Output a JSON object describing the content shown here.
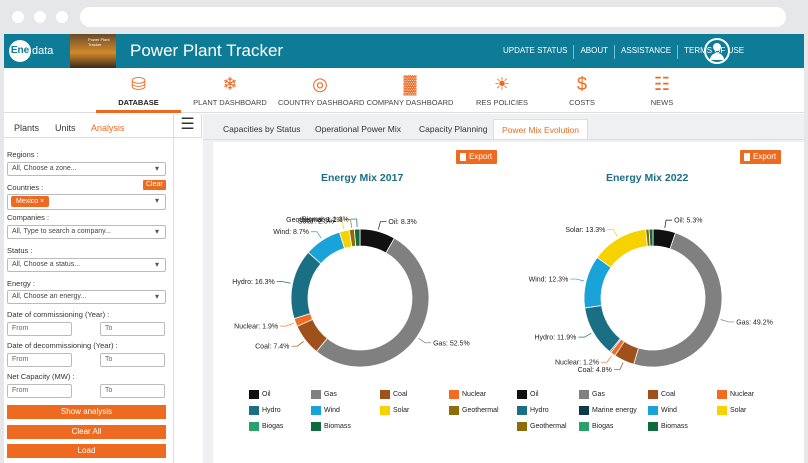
{
  "app": {
    "logo_text": "data",
    "logo_badge": "Ene",
    "thumb_text": "Power Plant Tracker",
    "title": "Power Plant Tracker",
    "top_links": [
      "UPDATE STATUS",
      "ABOUT",
      "ASSISTANCE",
      "TERMS OF USE"
    ]
  },
  "nav": [
    {
      "label": "DATABASE",
      "icon": "database-icon",
      "glyph": "⛁",
      "active": true
    },
    {
      "label": "PLANT DASHBOARD",
      "icon": "wind-turbine-icon",
      "glyph": "❄",
      "active": false
    },
    {
      "label": "COUNTRY DASHBOARD",
      "icon": "globe-icon",
      "glyph": "◎",
      "active": false
    },
    {
      "label": "COMPANY DASHBOARD",
      "icon": "company-icon",
      "glyph": "▓",
      "active": false
    },
    {
      "label": "RES POLICIES",
      "icon": "solar-icon",
      "glyph": "☀",
      "active": false
    },
    {
      "label": "COSTS",
      "icon": "dollar-icon",
      "glyph": "$",
      "active": false
    },
    {
      "label": "NEWS",
      "icon": "news-icon",
      "glyph": "☷",
      "active": false
    }
  ],
  "sidebar": {
    "tabs": [
      "Plants",
      "Units",
      "Analysis"
    ],
    "active_tab": "Analysis",
    "regions_label": "Regions :",
    "regions_value": "All, Choose a zone...",
    "countries_label": "Countries :",
    "clear_label": "Clear",
    "country_chip": "Mexico",
    "chip_close": "×",
    "companies_label": "Companies :",
    "companies_placeholder": "All, Type to search a company...",
    "status_label": "Status :",
    "status_value": "All, Choose a status...",
    "energy_label": "Energy :",
    "energy_value": "All, Choose an energy...",
    "commissioning_label": "Date of commissioning (Year) :",
    "decommissioning_label": "Date of decommissioning (Year) :",
    "capacity_label": "Net Capacity (MW) :",
    "from": "From",
    "to": "To",
    "show_analysis": "Show analysis",
    "clear_all": "Clear All",
    "load": "Load"
  },
  "main": {
    "tabs": [
      "Capacities by Status",
      "Operational Power Mix",
      "Capacity Planning",
      "Power Mix Evolution"
    ],
    "active_tab": "Power Mix Evolution",
    "export_label": "Export"
  },
  "chart_data": [
    {
      "type": "pie",
      "title": "Energy Mix 2017",
      "slices": [
        {
          "name": "Oil",
          "value": 8.3,
          "color": "#111111",
          "label": "Oil: 8.3%"
        },
        {
          "name": "Gas",
          "value": 52.5,
          "color": "#808080",
          "label": "Gas: 52.5%"
        },
        {
          "name": "Coal",
          "value": 7.4,
          "color": "#a0501a",
          "label": "Coal: 7.4%"
        },
        {
          "name": "Nuclear",
          "value": 1.9,
          "color": "#f26b22",
          "label": "Nuclear: 1.9%"
        },
        {
          "name": "Hydro",
          "value": 16.3,
          "color": "#1a6f84",
          "label": "Hydro: 16.3%"
        },
        {
          "name": "Wind",
          "value": 8.7,
          "color": "#1aa3d9",
          "label": "Wind: 8.7%"
        },
        {
          "name": "Solar",
          "value": 2.3,
          "color": "#f6d200",
          "label": "Solar: 2.3%"
        },
        {
          "name": "Geothermal",
          "value": 1.2,
          "color": "#8c6d0a",
          "label": "Geothermal: 1.2%"
        },
        {
          "name": "Biomass",
          "value": 1.3,
          "color": "#0f6b3b",
          "label": "Biomass: 1.3%"
        }
      ],
      "legend": [
        {
          "name": "Oil",
          "color": "#111111"
        },
        {
          "name": "Gas",
          "color": "#808080"
        },
        {
          "name": "Coal",
          "color": "#a0501a"
        },
        {
          "name": "Nuclear",
          "color": "#f26b22"
        },
        {
          "name": "Hydro",
          "color": "#1a6f84"
        },
        {
          "name": "Wind",
          "color": "#1aa3d9"
        },
        {
          "name": "Solar",
          "color": "#f6d200"
        },
        {
          "name": "Geothermal",
          "color": "#8c6d0a"
        },
        {
          "name": "Biogas",
          "color": "#2aa06a"
        },
        {
          "name": "Biomass",
          "color": "#0f6b3b"
        }
      ]
    },
    {
      "type": "pie",
      "title": "Energy Mix 2022",
      "slices": [
        {
          "name": "Oil",
          "value": 5.3,
          "color": "#111111",
          "label": "Oil: 5.3%"
        },
        {
          "name": "Gas",
          "value": 49.2,
          "color": "#808080",
          "label": "Gas: 49.2%"
        },
        {
          "name": "Coal",
          "value": 4.8,
          "color": "#a0501a",
          "label": "Coal: 4.8%"
        },
        {
          "name": "Nuclear",
          "value": 1.2,
          "color": "#f26b22",
          "label": "Nuclear: 1.2%"
        },
        {
          "name": "Marine energy",
          "value": 0.3,
          "color": "#0c3a4a",
          "label": ""
        },
        {
          "name": "Hydro",
          "value": 11.9,
          "color": "#1a6f84",
          "label": "Hydro: 11.9%"
        },
        {
          "name": "Wind",
          "value": 12.3,
          "color": "#1aa3d9",
          "label": "Wind: 12.3%"
        },
        {
          "name": "Solar",
          "value": 13.3,
          "color": "#f6d200",
          "label": "Solar: 13.3%"
        },
        {
          "name": "Geothermal",
          "value": 0.8,
          "color": "#8c6d0a",
          "label": ""
        },
        {
          "name": "Biomass",
          "value": 0.9,
          "color": "#0f6b3b",
          "label": ""
        }
      ],
      "legend": [
        {
          "name": "Oil",
          "color": "#111111"
        },
        {
          "name": "Gas",
          "color": "#808080"
        },
        {
          "name": "Coal",
          "color": "#a0501a"
        },
        {
          "name": "Nuclear",
          "color": "#f26b22"
        },
        {
          "name": "Hydro",
          "color": "#1a6f84"
        },
        {
          "name": "Marine energy",
          "color": "#0c3a4a"
        },
        {
          "name": "Wind",
          "color": "#1aa3d9"
        },
        {
          "name": "Solar",
          "color": "#f6d200"
        },
        {
          "name": "Geothermal",
          "color": "#8c6d0a"
        },
        {
          "name": "Biogas",
          "color": "#2aa06a"
        },
        {
          "name": "Biomass",
          "color": "#0f6b3b"
        }
      ]
    }
  ]
}
